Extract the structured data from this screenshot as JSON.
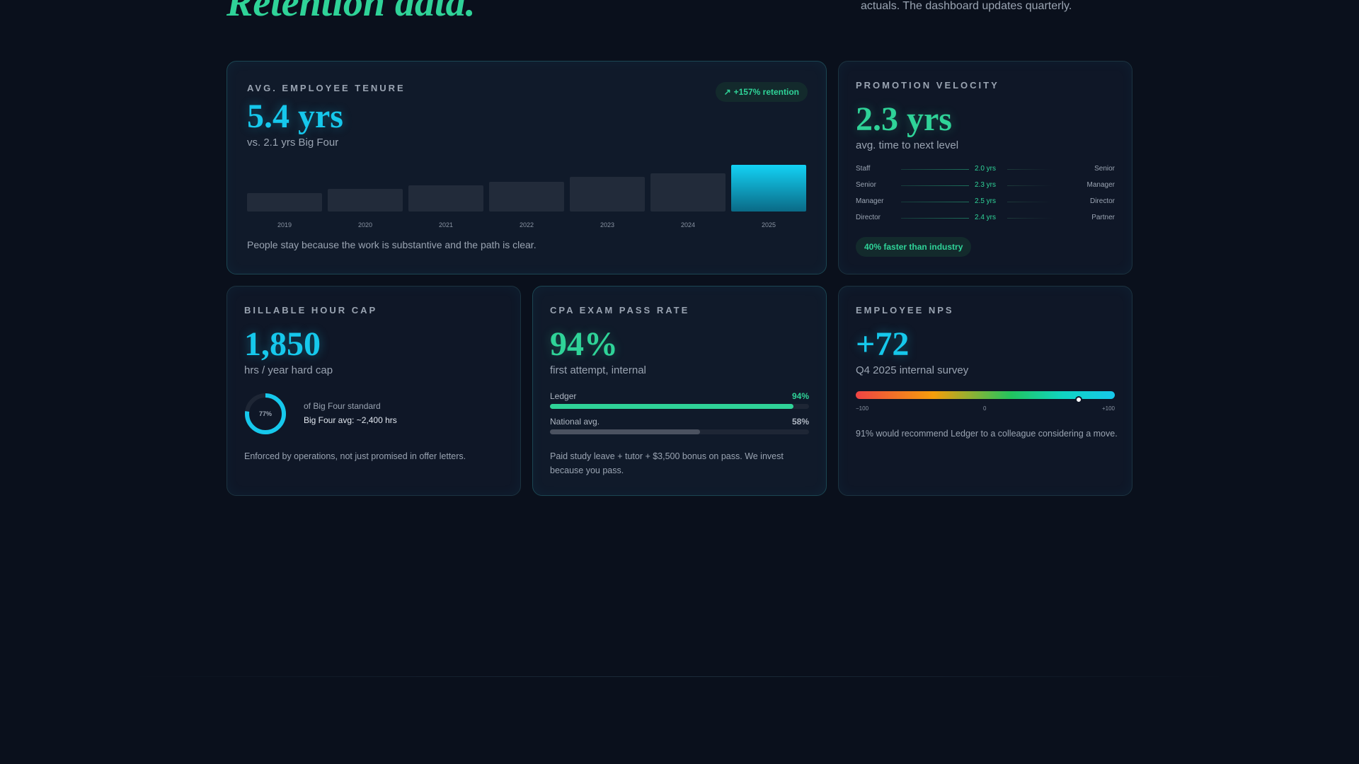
{
  "hero": {
    "title": "Retention data.",
    "description": "actuals. The dashboard updates quarterly."
  },
  "tenure": {
    "label": "AVG. EMPLOYEE TENURE",
    "value": "5.4 yrs",
    "subtitle": "vs. 2.1 yrs Big Four",
    "badge_icon": "arrow-up-right-icon",
    "badge": "+157% retention",
    "footer": "People stay because the work is substantive and the path is clear."
  },
  "chart_data": {
    "type": "bar",
    "categories": [
      "2019",
      "2020",
      "2021",
      "2022",
      "2023",
      "2024",
      "2025"
    ],
    "values": [
      2.1,
      2.6,
      3.0,
      3.4,
      4.0,
      4.4,
      5.4
    ],
    "title": "",
    "xlabel": "",
    "ylabel": "",
    "highlight_index": 6,
    "colors": {
      "bar": "#222b3a",
      "highlight": "#13d2f5"
    }
  },
  "promotion": {
    "label": "PROMOTION VELOCITY",
    "value": "2.3 yrs",
    "subtitle": "avg. time to next level",
    "rows": [
      {
        "from": "Staff",
        "time": "2.0 yrs",
        "to": "Senior"
      },
      {
        "from": "Senior",
        "time": "2.3 yrs",
        "to": "Manager"
      },
      {
        "from": "Manager",
        "time": "2.5 yrs",
        "to": "Director"
      },
      {
        "from": "Director",
        "time": "2.4 yrs",
        "to": "Partner"
      }
    ],
    "badge": "40% faster than industry"
  },
  "billable": {
    "label": "BILLABLE HOUR CAP",
    "value": "1,850",
    "subtitle": "hrs / year hard cap",
    "ring_percent": 77,
    "ring_label": "77%",
    "ring_caption": "of Big Four standard",
    "ring_note": "Big Four avg: ~2,400 hrs",
    "footer": "Enforced by operations, not just promised in offer letters."
  },
  "cpa": {
    "label": "CPA EXAM PASS RATE",
    "value": "94%",
    "subtitle": "first attempt, internal",
    "bars": [
      {
        "name": "Ledger",
        "pct_label": "94%",
        "value": 94,
        "color": "#2fd398"
      },
      {
        "name": "National avg.",
        "pct_label": "58%",
        "value": 58,
        "color": "#4b5260"
      }
    ],
    "footer": "Paid study leave + tutor + $3,500 bonus on pass. We invest because you pass."
  },
  "nps": {
    "label": "EMPLOYEE NPS",
    "value": "+72",
    "subtitle": "Q4 2025 internal survey",
    "score": 72,
    "ticks": [
      "−100",
      "0",
      "+100"
    ],
    "footer": "91% would recommend Ledger to a colleague considering a move."
  }
}
